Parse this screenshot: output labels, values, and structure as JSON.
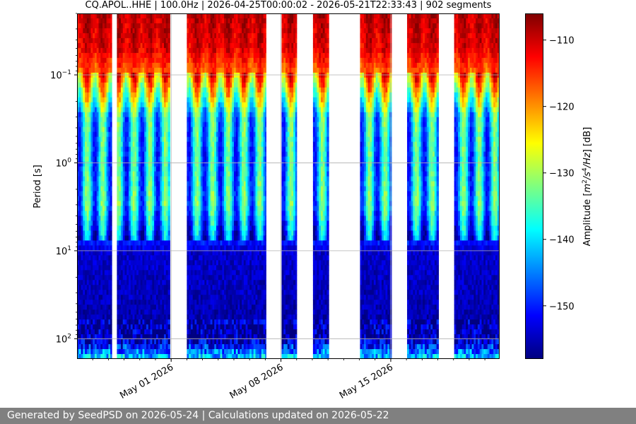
{
  "chart_data": {
    "type": "heatmap",
    "title": "CQ.APOL..HHE | 100.0Hz | 2026-04-25T00:00:02 - 2026-05-21T22:33:43 | 902 segments",
    "xlabel": "",
    "ylabel": "Period [s]",
    "x_scale": "date",
    "x_range": [
      "2026-04-25T00:00:02",
      "2026-05-21T22:33:43"
    ],
    "x_ticks": [
      "May 01 2026",
      "May 08 2026",
      "May 15 2026"
    ],
    "y_scale": "log",
    "y_inverted": true,
    "y_range": [
      0.02,
      170
    ],
    "y_ticks": [
      0.1,
      1,
      10,
      100
    ],
    "y_tick_labels": [
      "10^-1",
      "10^0",
      "10^1",
      "10^2"
    ],
    "grid": true,
    "colormap": "jet",
    "colorbar": {
      "label": "Amplitude [m^2/s^4/Hz] [dB]",
      "range": [
        -158,
        -106
      ],
      "ticks": [
        -110,
        -120,
        -130,
        -140,
        -150
      ]
    },
    "data_coverage": [
      {
        "start": "2026-04-25T00:00",
        "end": "2026-04-27T05:00"
      },
      {
        "start": "2026-04-27T13:00",
        "end": "2026-04-30T22:00"
      },
      {
        "start": "2026-05-02T00:00",
        "end": "2026-05-07T01:00"
      },
      {
        "start": "2026-05-08T01:00",
        "end": "2026-05-09T00:00"
      },
      {
        "start": "2026-05-10T01:00",
        "end": "2026-05-11T01:00"
      },
      {
        "start": "2026-05-13T01:00",
        "end": "2026-05-15T01:00"
      },
      {
        "start": "2026-05-16T01:00",
        "end": "2026-05-18T01:00"
      },
      {
        "start": "2026-05-19T01:00",
        "end": "2026-05-21T22:33"
      }
    ],
    "spectral_levels_db": [
      {
        "period_s": 0.02,
        "db": -109
      },
      {
        "period_s": 0.05,
        "db": -111
      },
      {
        "period_s": 0.1,
        "db": -118
      },
      {
        "period_s": 0.3,
        "db": -140
      },
      {
        "period_s": 1,
        "db": -142
      },
      {
        "period_s": 3,
        "db": -140
      },
      {
        "period_s": 7,
        "db": -148
      },
      {
        "period_s": 10,
        "db": -154
      },
      {
        "period_s": 100,
        "db": -156
      },
      {
        "period_s": 170,
        "db": -140
      }
    ],
    "colors": {
      "gap": "#ffffff",
      "grid": "#b0b0b0"
    }
  },
  "footer": {
    "text": "Generated by SeedPSD on 2026-05-24 | Calculations updated on 2026-05-22"
  }
}
